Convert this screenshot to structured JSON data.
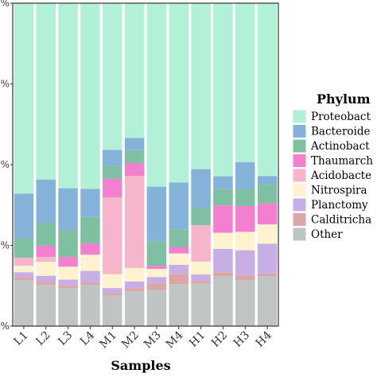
{
  "chart_data": {
    "type": "bar",
    "stacked": true,
    "xlabel": "Samples",
    "ylabel": "",
    "ylim": [
      0,
      1
    ],
    "yticks": [
      0,
      0.25,
      0.5,
      0.75,
      1.0
    ],
    "ytick_labels": [
      "%",
      "%",
      "%",
      "%",
      "%"
    ],
    "grid": false,
    "legend_position": "right",
    "legend_title": "Phylum",
    "categories": [
      "L1",
      "L2",
      "L3",
      "L4",
      "M1",
      "M2",
      "M3",
      "M4",
      "H1",
      "H2",
      "H3",
      "H4"
    ],
    "series": [
      {
        "name": "Other",
        "color": "#c1c4c5",
        "values": [
          0.142,
          0.128,
          0.118,
          0.128,
          0.095,
          0.108,
          0.112,
          0.13,
          0.132,
          0.155,
          0.143,
          0.155
        ]
      },
      {
        "name": "Calditrichaeota",
        "color": "#dca6a8",
        "values": [
          0.01,
          0.01,
          0.008,
          0.008,
          0.008,
          0.01,
          0.02,
          0.032,
          0.008,
          0.012,
          0.015,
          0.008
        ]
      },
      {
        "name": "Planctomycetes",
        "color": "#c7aee5",
        "values": [
          0.015,
          0.018,
          0.018,
          0.035,
          0.015,
          0.02,
          0.02,
          0.028,
          0.02,
          0.072,
          0.077,
          0.092
        ]
      },
      {
        "name": "Nitrospirae",
        "color": "#fff3cf",
        "values": [
          0.02,
          0.043,
          0.04,
          0.05,
          0.043,
          0.042,
          0.025,
          0.035,
          0.04,
          0.05,
          0.057,
          0.06
        ]
      },
      {
        "name": "Acidobacteria",
        "color": "#f7b5cb",
        "values": [
          0.025,
          0.015,
          0.0,
          0.0,
          0.238,
          0.285,
          0.0,
          0.0,
          0.113,
          0.0,
          0.0,
          0.0
        ]
      },
      {
        "name": "Thaumarchaeota",
        "color": "#f280cf",
        "values": [
          0.0,
          0.035,
          0.03,
          0.035,
          0.057,
          0.04,
          0.01,
          0.02,
          0.0,
          0.085,
          0.08,
          0.065
        ]
      },
      {
        "name": "Actinobacteria",
        "color": "#7fbfa2",
        "values": [
          0.06,
          0.07,
          0.083,
          0.082,
          0.04,
          0.04,
          0.075,
          0.055,
          0.053,
          0.05,
          0.053,
          0.06
        ]
      },
      {
        "name": "Bacteroidetes",
        "color": "#85b2d9",
        "values": [
          0.138,
          0.135,
          0.13,
          0.087,
          0.05,
          0.038,
          0.17,
          0.145,
          0.12,
          0.04,
          0.083,
          0.025
        ]
      },
      {
        "name": "Proteobacteria",
        "color": "#b3f0d8",
        "values": [
          0.59,
          0.546,
          0.573,
          0.575,
          0.454,
          0.417,
          0.568,
          0.555,
          0.514,
          0.536,
          0.492,
          0.535
        ]
      }
    ]
  },
  "legend": {
    "title": "Phylum",
    "items": [
      {
        "label": "Proteobact",
        "color": "#b3f0d8"
      },
      {
        "label": "Bacteroide",
        "color": "#85b2d9"
      },
      {
        "label": "Actinobact",
        "color": "#7fbfa2"
      },
      {
        "label": "Thaumarch",
        "color": "#f280cf"
      },
      {
        "label": "Acidobacte",
        "color": "#f7b5cb"
      },
      {
        "label": "Nitrospira",
        "color": "#fff3cf"
      },
      {
        "label": "Plancto​my",
        "color": "#c7aee5"
      },
      {
        "label": "Calditricha",
        "color": "#dca6a8"
      },
      {
        "label": "Other",
        "color": "#c1c4c5"
      }
    ]
  }
}
